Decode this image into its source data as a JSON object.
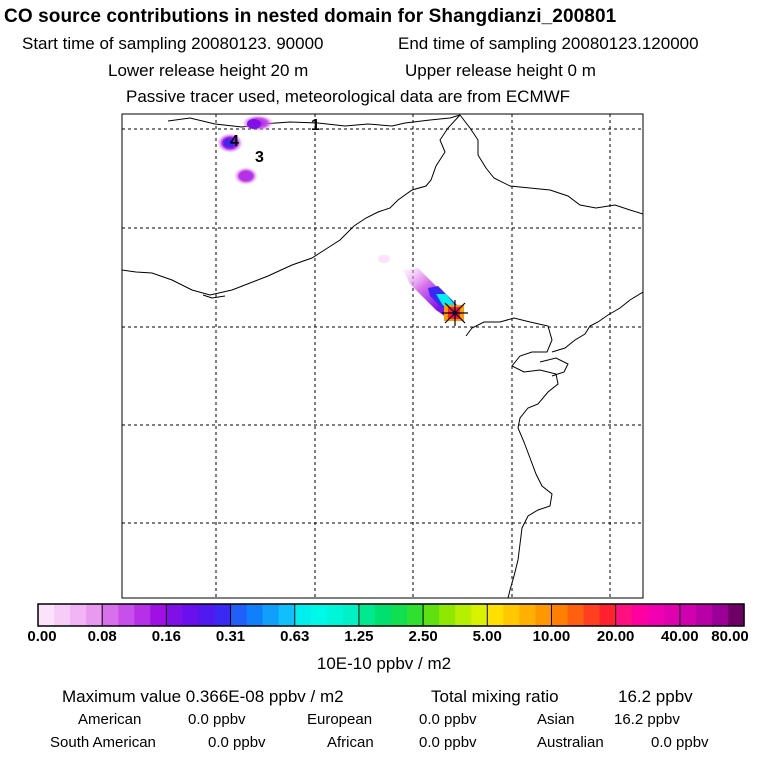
{
  "title": "CO  source contributions in nested domain for Shangdianzi_200801",
  "sampling": {
    "start": "Start time of sampling 20080123. 90000",
    "end": "End time of sampling 20080123.120000"
  },
  "release": {
    "lower": "Lower release height   20 m",
    "upper": "Upper release height    0 m"
  },
  "tracer_note": "Passive tracer used, meteorological data are from ECMWF",
  "map": {
    "source_labels": [
      "1",
      "4",
      "3"
    ]
  },
  "colorbar": {
    "tick_labels": [
      "0.00",
      "0.08",
      "0.16",
      "0.31",
      "0.63",
      "1.25",
      "2.50",
      "5.00",
      "10.00",
      "20.00",
      "40.00",
      "80.00"
    ],
    "colors": [
      "#fbe3fb",
      "#f7cdf8",
      "#f2b4f5",
      "#e89af0",
      "#d870ec",
      "#c850ea",
      "#b530e6",
      "#a010e4",
      "#8010e8",
      "#6a10ee",
      "#5218f0",
      "#3a28f4",
      "#2060f8",
      "#1080fa",
      "#10a0fc",
      "#10c0fc",
      "#00eeee",
      "#00f8e8",
      "#00f6d8",
      "#00f0c8",
      "#00e890",
      "#00e070",
      "#10e050",
      "#30e030",
      "#60e010",
      "#90e800",
      "#b8ee00",
      "#d8f200",
      "#ffe000",
      "#ffc800",
      "#ffb000",
      "#ff9800",
      "#ff8000",
      "#ff6010",
      "#ff4020",
      "#ff2030",
      "#ff1080",
      "#ff00a0",
      "#f000b0",
      "#e000b0",
      "#d000b0",
      "#b800a8",
      "#9a0098",
      "#700068"
    ],
    "unit": "10E-10 ppbv / m2"
  },
  "summary": {
    "max_label": "Maximum value  0.366E-08 ppbv / m2",
    "total_label": "Total mixing ratio",
    "total_value": "16.2 ppbv",
    "regions": [
      {
        "name": "American",
        "value": "0.0 ppbv"
      },
      {
        "name": "European",
        "value": "0.0 ppbv"
      },
      {
        "name": "Asian",
        "value": "16.2 ppbv"
      },
      {
        "name": "South American",
        "value": "0.0 ppbv"
      },
      {
        "name": "African",
        "value": "0.0 ppbv"
      },
      {
        "name": "Australian",
        "value": "0.0 ppbv"
      }
    ]
  }
}
